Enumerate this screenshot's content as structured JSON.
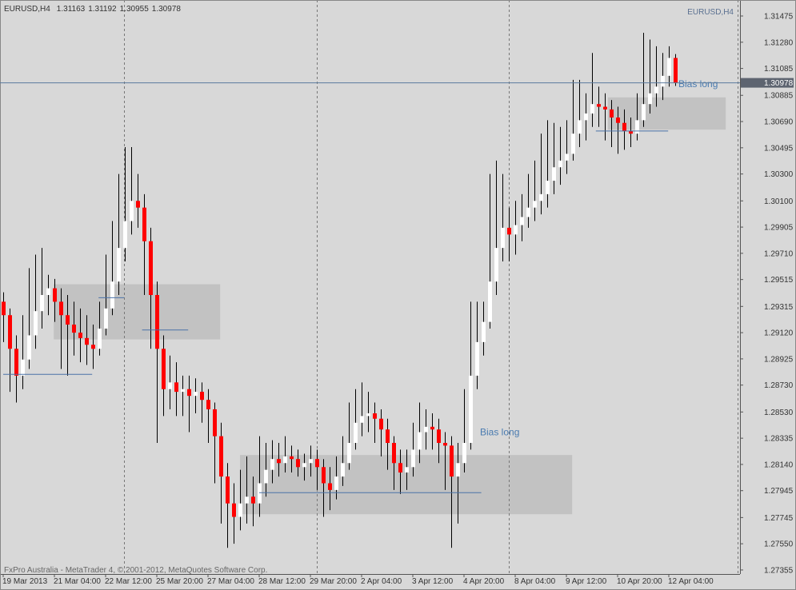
{
  "chart_data": {
    "type": "candlestick",
    "symbol": "EURUSD,H4",
    "copyright": "FxPro Australia - MetaTrader 4, © 2001-2012, MetaQuotes Software Corp.",
    "categories": [
      "19 Mar 2013",
      null,
      null,
      null,
      null,
      null,
      null,
      null,
      "21 Mar 04:00",
      null,
      null,
      null,
      null,
      null,
      null,
      null,
      "22 Mar 12:00",
      null,
      null,
      null,
      null,
      null,
      null,
      null,
      "25 Mar 20:00",
      null,
      null,
      null,
      null,
      null,
      null,
      null,
      "27 Mar 04:00",
      null,
      null,
      null,
      null,
      null,
      null,
      null,
      "28 Mar 12:00",
      null,
      null,
      null,
      null,
      null,
      null,
      null,
      "29 Mar 20:00",
      null,
      null,
      null,
      null,
      null,
      null,
      null,
      "2 Apr 04:00",
      null,
      null,
      null,
      null,
      null,
      null,
      null,
      "3 Apr 12:00",
      null,
      null,
      null,
      null,
      null,
      null,
      null,
      "4 Apr 20:00",
      null,
      null,
      null,
      null,
      null,
      null,
      null,
      "8 Apr 04:00",
      null,
      null,
      null,
      null,
      null,
      null,
      null,
      "9 Apr 12:00",
      null,
      null,
      null,
      null,
      null,
      null,
      null,
      "10 Apr 20:00",
      null,
      null,
      null,
      null,
      null,
      null,
      null,
      "12 Apr 04:00",
      null
    ],
    "series": [
      {
        "name": "EURUSD,H4",
        "up_color": "#ffffff",
        "down_color": "#ff0000",
        "wick_color": "#000000",
        "open": [
          1.2935,
          1.2925,
          1.29,
          1.288,
          1.2892,
          1.291,
          1.2928,
          1.294,
          1.2945,
          1.2935,
          1.2925,
          1.2918,
          1.2912,
          1.2908,
          1.2903,
          1.29,
          1.2915,
          1.293,
          1.295,
          1.2975,
          1.2995,
          1.301,
          1.3005,
          1.298,
          1.294,
          1.29,
          1.287,
          1.2875,
          1.2868,
          1.287,
          1.2865,
          1.2868,
          1.2862,
          1.2855,
          1.2835,
          1.2805,
          1.2785,
          1.2775,
          1.2785,
          1.279,
          1.2785,
          1.28,
          1.281,
          1.2818,
          1.2815,
          1.282,
          1.2818,
          1.2812,
          1.2815,
          1.2818,
          1.2812,
          1.28,
          1.2795,
          1.2805,
          1.2815,
          1.283,
          1.2845,
          1.285,
          1.2852,
          1.2848,
          1.284,
          1.283,
          1.2815,
          1.2808,
          1.2812,
          1.2825,
          1.2838,
          1.2842,
          1.284,
          1.283,
          1.2828,
          1.2805,
          1.2815,
          1.283,
          1.288,
          1.2905,
          1.292,
          1.295,
          1.2975,
          1.299,
          1.2985,
          1.2992,
          1.2998,
          1.3005,
          1.301,
          1.3015,
          1.3025,
          1.3035,
          1.304,
          1.3045,
          1.306,
          1.307,
          1.3075,
          1.3082,
          1.308,
          1.3078,
          1.3072,
          1.3068,
          1.3062,
          1.306,
          1.307,
          1.3082,
          1.309,
          1.3095,
          1.3103,
          1.31163
        ],
        "high": [
          1.2942,
          1.293,
          1.291,
          1.2925,
          1.296,
          1.297,
          1.2975,
          1.2955,
          1.2952,
          1.2945,
          1.294,
          1.2935,
          1.293,
          1.2925,
          1.2918,
          1.2935,
          1.297,
          1.2995,
          1.303,
          1.305,
          1.305,
          1.303,
          1.3015,
          1.299,
          1.295,
          1.291,
          1.2895,
          1.289,
          1.288,
          1.288,
          1.2878,
          1.2875,
          1.287,
          1.286,
          1.2845,
          1.2815,
          1.28,
          1.281,
          1.282,
          1.2805,
          1.2835,
          1.283,
          1.2832,
          1.283,
          1.2835,
          1.2828,
          1.2825,
          1.2822,
          1.2828,
          1.2825,
          1.2818,
          1.2812,
          1.282,
          1.2835,
          1.286,
          1.287,
          1.2875,
          1.2868,
          1.286,
          1.2855,
          1.2848,
          1.2835,
          1.2825,
          1.2825,
          1.2845,
          1.286,
          1.2855,
          1.2852,
          1.2848,
          1.2838,
          1.2835,
          1.283,
          1.287,
          1.2935,
          1.2935,
          1.2935,
          1.303,
          1.304,
          1.303,
          1.3005,
          1.301,
          1.3015,
          1.303,
          1.304,
          1.306,
          1.307,
          1.3068,
          1.3065,
          1.307,
          1.31,
          1.31,
          1.309,
          1.312,
          1.3095,
          1.309,
          1.3085,
          1.308,
          1.3078,
          1.3072,
          1.309,
          1.3135,
          1.313,
          1.3125,
          1.312,
          1.3125,
          1.31192
        ],
        "low": [
          1.2905,
          1.2868,
          1.286,
          1.287,
          1.2885,
          1.29,
          1.2915,
          1.2925,
          1.292,
          1.2885,
          1.288,
          1.2895,
          1.289,
          1.2888,
          1.2885,
          1.2895,
          1.291,
          1.2925,
          1.294,
          1.2965,
          1.2985,
          1.299,
          1.294,
          1.29,
          1.283,
          1.285,
          1.2855,
          1.285,
          1.285,
          1.2838,
          1.2852,
          1.2845,
          1.283,
          1.28,
          1.277,
          1.2752,
          1.2755,
          1.2765,
          1.277,
          1.2768,
          1.2775,
          1.279,
          1.28,
          1.2805,
          1.2808,
          1.2808,
          1.2805,
          1.2802,
          1.2805,
          1.2795,
          1.2775,
          1.278,
          1.2788,
          1.2798,
          1.281,
          1.2825,
          1.2835,
          1.2838,
          1.283,
          1.282,
          1.281,
          1.2795,
          1.2792,
          1.2795,
          1.2805,
          1.2815,
          1.2825,
          1.2825,
          1.2815,
          1.2795,
          1.2752,
          1.277,
          1.2808,
          1.2825,
          1.287,
          1.2895,
          1.2915,
          1.294,
          1.2965,
          1.2965,
          1.297,
          1.298,
          1.299,
          1.2995,
          1.3,
          1.3005,
          1.3015,
          1.3022,
          1.303,
          1.304,
          1.305,
          1.3055,
          1.3065,
          1.3065,
          1.3055,
          1.305,
          1.3045,
          1.3048,
          1.305,
          1.3055,
          1.3065,
          1.3075,
          1.308,
          1.3085,
          1.3095,
          1.30955
        ],
        "close": [
          1.2925,
          1.29,
          1.288,
          1.2892,
          1.291,
          1.2928,
          1.294,
          1.2945,
          1.2935,
          1.2925,
          1.2918,
          1.2912,
          1.2908,
          1.2903,
          1.29,
          1.2915,
          1.293,
          1.295,
          1.2975,
          1.2995,
          1.301,
          1.3005,
          1.298,
          1.294,
          1.29,
          1.287,
          1.2875,
          1.2868,
          1.287,
          1.2865,
          1.2868,
          1.2862,
          1.2855,
          1.2835,
          1.2805,
          1.2785,
          1.2775,
          1.2785,
          1.279,
          1.2785,
          1.28,
          1.281,
          1.2818,
          1.2815,
          1.282,
          1.2818,
          1.2812,
          1.2815,
          1.2818,
          1.2812,
          1.28,
          1.2795,
          1.2805,
          1.2815,
          1.283,
          1.2845,
          1.285,
          1.2852,
          1.2848,
          1.284,
          1.283,
          1.2815,
          1.2808,
          1.2812,
          1.2825,
          1.2838,
          1.2842,
          1.284,
          1.283,
          1.2828,
          1.2805,
          1.2815,
          1.283,
          1.288,
          1.2905,
          1.292,
          1.295,
          1.2975,
          1.299,
          1.2985,
          1.2992,
          1.2998,
          1.3005,
          1.301,
          1.3015,
          1.3025,
          1.3035,
          1.304,
          1.3045,
          1.306,
          1.307,
          1.3075,
          1.3082,
          1.308,
          1.3078,
          1.3072,
          1.3068,
          1.3062,
          1.306,
          1.307,
          1.3082,
          1.309,
          1.3095,
          1.3103,
          1.31163,
          1.30978
        ]
      }
    ],
    "ylim": [
      1.27325,
      1.31594
    ],
    "yticks": [
      1.31475,
      {
        "value": 1.3128,
        "label": "1.31280"
      },
      1.31085,
      1.30885,
      {
        "value": 1.3069,
        "label": "1.30690"
      },
      1.30495,
      {
        "value": 1.303,
        "label": "1.30300"
      },
      {
        "value": 1.301,
        "label": "1.30100"
      },
      1.29905,
      {
        "value": 1.2971,
        "label": "1.29710"
      },
      1.29515,
      1.29315,
      {
        "value": 1.2912,
        "label": "1.29120"
      },
      1.28925,
      {
        "value": 1.2873,
        "label": "1.28730"
      },
      {
        "value": 1.2853,
        "label": "1.28530"
      },
      1.28335,
      {
        "value": 1.2814,
        "label": "1.28140"
      },
      1.27945,
      1.27745,
      {
        "value": 1.2755,
        "label": "1.27550"
      },
      1.27355
    ],
    "grid": false,
    "zones": [
      {
        "top": 1.2948,
        "bottom": 1.2907
      },
      {
        "top": 1.2821,
        "bottom": 1.2777
      },
      {
        "top": 1.3087,
        "bottom": 1.3063
      }
    ],
    "levels": [
      1.2881,
      1.2938,
      1.2914,
      1.2793,
      1.3062
    ],
    "annotations": [
      "Bias long",
      "Bias long"
    ]
  }
}
